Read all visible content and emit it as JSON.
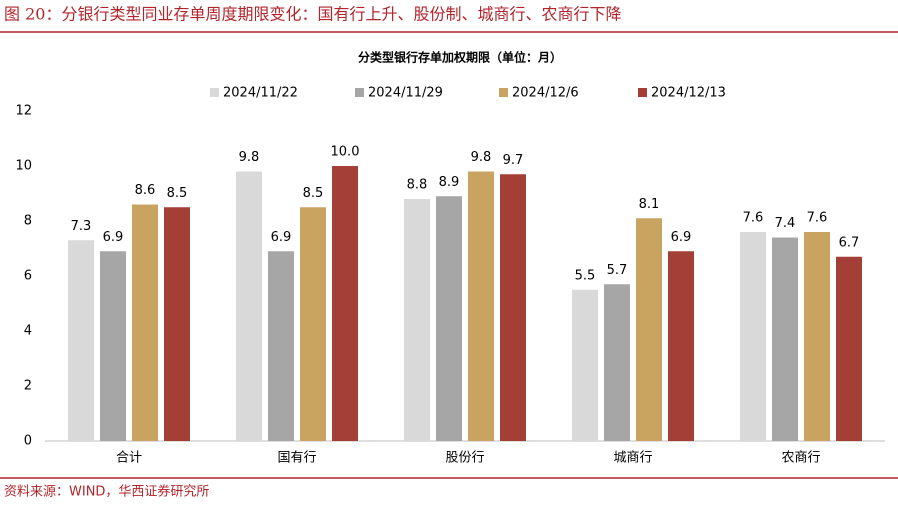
{
  "header": {
    "title": "图 20：分银行类型同业存单周度期限变化：国有行上升、股份制、城商行、农商行下降"
  },
  "footer": {
    "source": "资料来源：WIND，华西证券研究所"
  },
  "chart_data": {
    "type": "bar",
    "title": "分类型银行存单加权期限（单位：月）",
    "categories": [
      "合计",
      "国有行",
      "股份行",
      "城商行",
      "农商行"
    ],
    "series": [
      {
        "name": "2024/11/22",
        "color": "#d9d9d9",
        "values": [
          7.3,
          9.8,
          8.8,
          5.5,
          7.6
        ]
      },
      {
        "name": "2024/11/29",
        "color": "#a6a6a6",
        "values": [
          6.9,
          6.9,
          8.9,
          5.7,
          7.4
        ]
      },
      {
        "name": "2024/12/6",
        "color": "#c9a461",
        "values": [
          8.6,
          8.5,
          9.8,
          8.1,
          7.6
        ]
      },
      {
        "name": "2024/12/13",
        "color": "#a33f36",
        "values": [
          8.5,
          10.0,
          9.7,
          6.9,
          6.7
        ],
        "value_labels": [
          "8.5",
          "10.0",
          "9.7",
          "6.9",
          "6.7"
        ]
      }
    ],
    "ylim": [
      0,
      12
    ],
    "yticks": [
      0,
      2,
      4,
      6,
      8,
      10,
      12
    ],
    "grid": false,
    "legend": "top"
  }
}
